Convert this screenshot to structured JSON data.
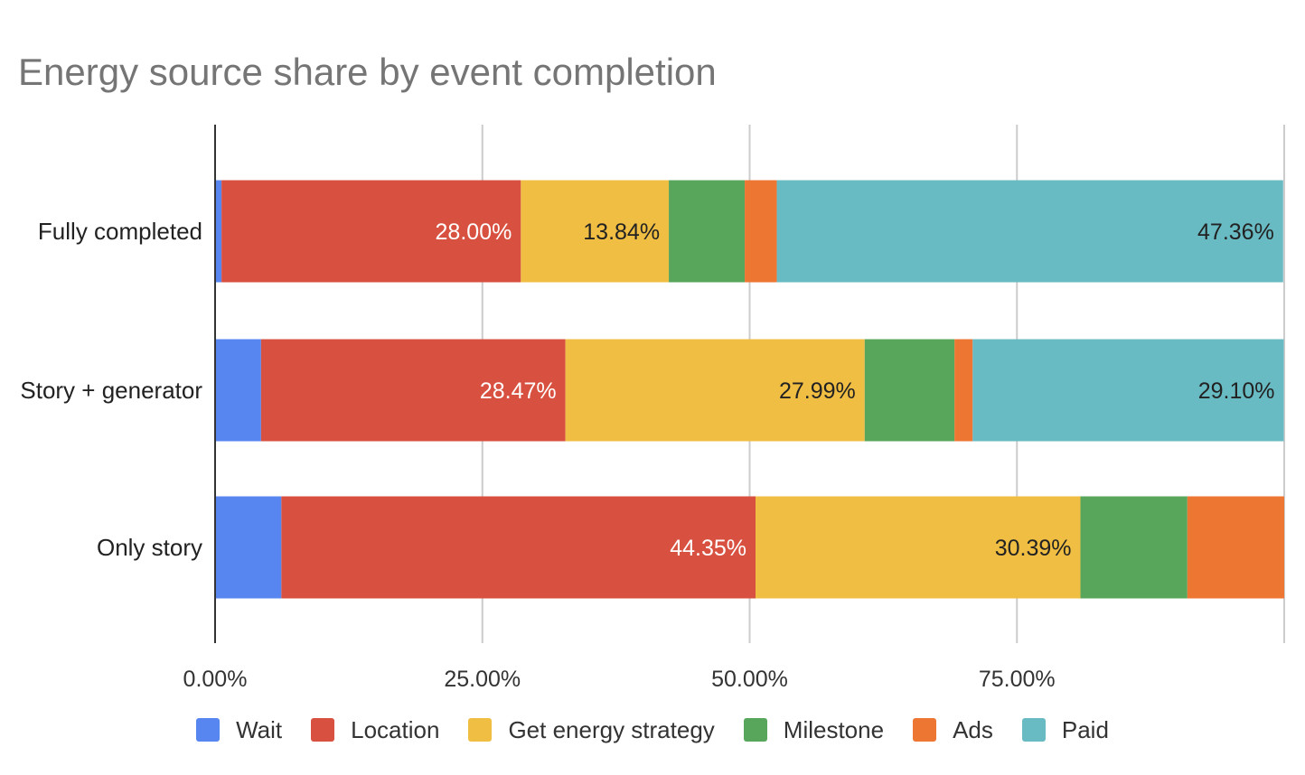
{
  "chart_data": {
    "type": "bar",
    "orientation": "horizontal",
    "stacked": true,
    "title": "Energy source share by event completion",
    "categories": [
      "Fully completed",
      "Story + generator",
      "Only story"
    ],
    "series": [
      {
        "name": "Wait",
        "color": "#5886F0",
        "values": [
          0.6,
          4.3,
          6.2
        ],
        "labels": [
          "",
          "",
          ""
        ],
        "label_color": "#ffffff"
      },
      {
        "name": "Location",
        "color": "#D85140",
        "values": [
          28.0,
          28.47,
          44.35
        ],
        "labels": [
          "28.00%",
          "28.47%",
          "44.35%"
        ],
        "label_color": "#ffffff"
      },
      {
        "name": "Get energy strategy",
        "color": "#F0BE42",
        "values": [
          13.84,
          27.99,
          30.39
        ],
        "labels": [
          "13.84%",
          "27.99%",
          "30.39%"
        ],
        "label_color": "#222222"
      },
      {
        "name": "Milestone",
        "color": "#58A55C",
        "values": [
          7.1,
          8.4,
          10.0
        ],
        "labels": [
          "",
          "",
          ""
        ],
        "label_color": "#ffffff"
      },
      {
        "name": "Ads",
        "color": "#ED7633",
        "values": [
          3.0,
          1.7,
          9.06
        ],
        "labels": [
          "",
          "",
          ""
        ],
        "label_color": "#ffffff"
      },
      {
        "name": "Paid",
        "color": "#69BBC3",
        "values": [
          47.36,
          29.1,
          0
        ],
        "labels": [
          "47.36%",
          "29.10%",
          ""
        ],
        "label_color": "#222222"
      }
    ],
    "x_ticks": [
      {
        "value": 0,
        "label": "0.00%"
      },
      {
        "value": 25,
        "label": "25.00%"
      },
      {
        "value": 50,
        "label": "50.00%"
      },
      {
        "value": 75,
        "label": "75.00%"
      },
      {
        "value": 100,
        "label": ""
      }
    ],
    "xlim": [
      0,
      100
    ],
    "xlabel": "",
    "ylabel": "",
    "grid": true,
    "legend": "bottom"
  }
}
